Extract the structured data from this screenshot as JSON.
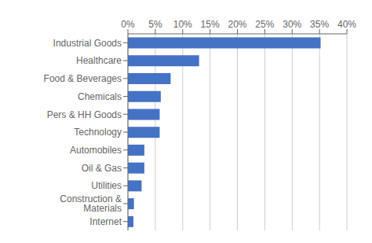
{
  "chart_data": {
    "type": "bar",
    "orientation": "horizontal",
    "categories": [
      "Internet",
      "Construction & Materials",
      "Utilities",
      "Oil & Gas",
      "Automobiles",
      "Technology",
      "Pers & HH Goods",
      "Chemicals",
      "Food & Beverages",
      "Healthcare",
      "Industrial Goods"
    ],
    "values": [
      0.01,
      0.011,
      0.025,
      0.03,
      0.03,
      0.058,
      0.058,
      0.06,
      0.078,
      0.13,
      0.352
    ],
    "color": "#4472C4",
    "xlim": [
      0,
      0.4
    ],
    "xticks": [
      {
        "value": 0.0,
        "label": "0%"
      },
      {
        "value": 0.05,
        "label": "5%"
      },
      {
        "value": 0.1,
        "label": "10%"
      },
      {
        "value": 0.15,
        "label": "15%"
      },
      {
        "value": 0.2,
        "label": "20%"
      },
      {
        "value": 0.25,
        "label": "25%"
      },
      {
        "value": 0.3,
        "label": "30%"
      },
      {
        "value": 0.35,
        "label": "35%"
      },
      {
        "value": 0.4,
        "label": "40%"
      }
    ],
    "grid": true
  }
}
